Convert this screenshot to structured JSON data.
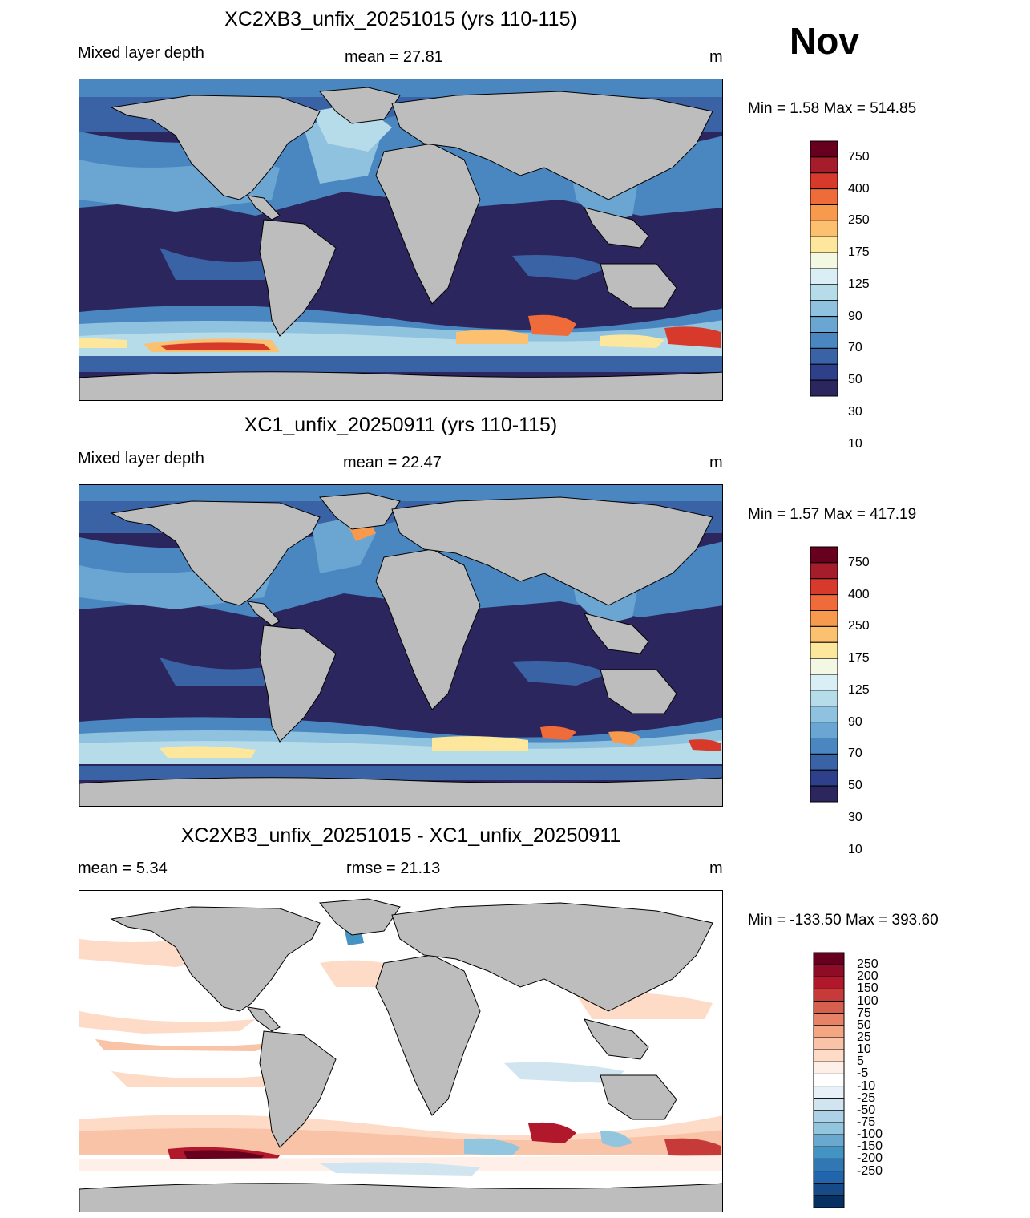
{
  "month": "Nov",
  "panels": [
    {
      "title": "XC2XB3_unfix_20251015 (yrs 110-115)",
      "left_label": "Mixed layer depth",
      "center_label": "mean =  27.81",
      "units": "m",
      "minmax": "Min =    1.58 Max = 514.85",
      "colorbar": {
        "labels": [
          "750",
          "400",
          "250",
          "175",
          "125",
          "90",
          "70",
          "50",
          "30",
          "10"
        ],
        "colors": [
          "#67001f",
          "#a51d2a",
          "#d73a2b",
          "#f06b3a",
          "#f79a4e",
          "#fbc171",
          "#fde79c",
          "#f2f8e2",
          "#d9eef5",
          "#b6dbe9",
          "#8fc2de",
          "#6aa6d1",
          "#4a87c1",
          "#3a63a6",
          "#2f408a",
          "#2c265e"
        ]
      }
    },
    {
      "title": "XC1_unfix_20250911 (yrs 110-115)",
      "left_label": "Mixed layer depth",
      "center_label": "mean =  22.47",
      "units": "m",
      "minmax": "Min =    1.57 Max = 417.19",
      "colorbar": {
        "labels": [
          "750",
          "400",
          "250",
          "175",
          "125",
          "90",
          "70",
          "50",
          "30",
          "10"
        ],
        "colors": [
          "#67001f",
          "#a51d2a",
          "#d73a2b",
          "#f06b3a",
          "#f79a4e",
          "#fbc171",
          "#fde79c",
          "#f2f8e2",
          "#d9eef5",
          "#b6dbe9",
          "#8fc2de",
          "#6aa6d1",
          "#4a87c1",
          "#3a63a6",
          "#2f408a",
          "#2c265e"
        ]
      }
    },
    {
      "title": "XC2XB3_unfix_20251015 - XC1_unfix_20250911",
      "left_label": "mean =   5.34",
      "center_label": "rmse =  21.13",
      "units": "m",
      "minmax": "Min = -133.50 Max = 393.60",
      "colorbar": {
        "labels": [
          "250",
          "200",
          "150",
          "100",
          "75",
          "50",
          "25",
          "10",
          "5",
          "-5",
          "-10",
          "-25",
          "-50",
          "-75",
          "-100",
          "-150",
          "-200",
          "-250"
        ],
        "colors": [
          "#67001f",
          "#8e0c25",
          "#b2182b",
          "#c63b3a",
          "#d6604d",
          "#e68367",
          "#f4a582",
          "#f8c3a6",
          "#fddbc7",
          "#fef0e8",
          "#ffffff",
          "#e8f1f7",
          "#d1e5f0",
          "#add1e6",
          "#92c5de",
          "#6aa8cf",
          "#4393c3",
          "#3077b4",
          "#2166ac",
          "#164b87",
          "#053061"
        ]
      }
    }
  ]
}
